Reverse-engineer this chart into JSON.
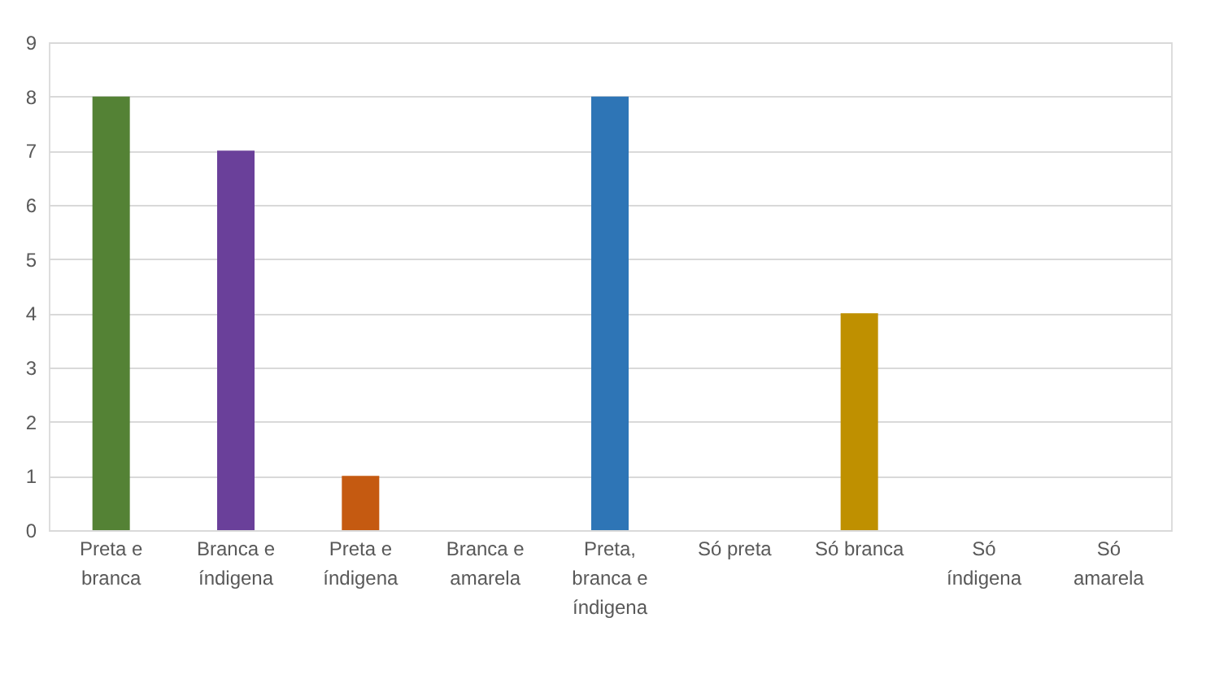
{
  "chart_data": {
    "type": "bar",
    "categories": [
      "Preta e branca",
      "Branca e índigena",
      "Preta e índigena",
      "Branca e amarela",
      "Preta, branca e índigena",
      "Só preta",
      "Só branca",
      "Só índigena",
      "Só amarela"
    ],
    "values": [
      8,
      7,
      1,
      0,
      8,
      0,
      4,
      0,
      0
    ],
    "colors": [
      "#548235",
      "#6a409a",
      "#c55a11",
      "#8f8f8f",
      "#2e75b6",
      "#7f7f7f",
      "#bf9000",
      "#7f7f7f",
      "#7f7f7f"
    ],
    "ylim": [
      0,
      9
    ],
    "yticks": [
      0,
      1,
      2,
      3,
      4,
      5,
      6,
      7,
      8,
      9
    ],
    "grid": "y"
  }
}
